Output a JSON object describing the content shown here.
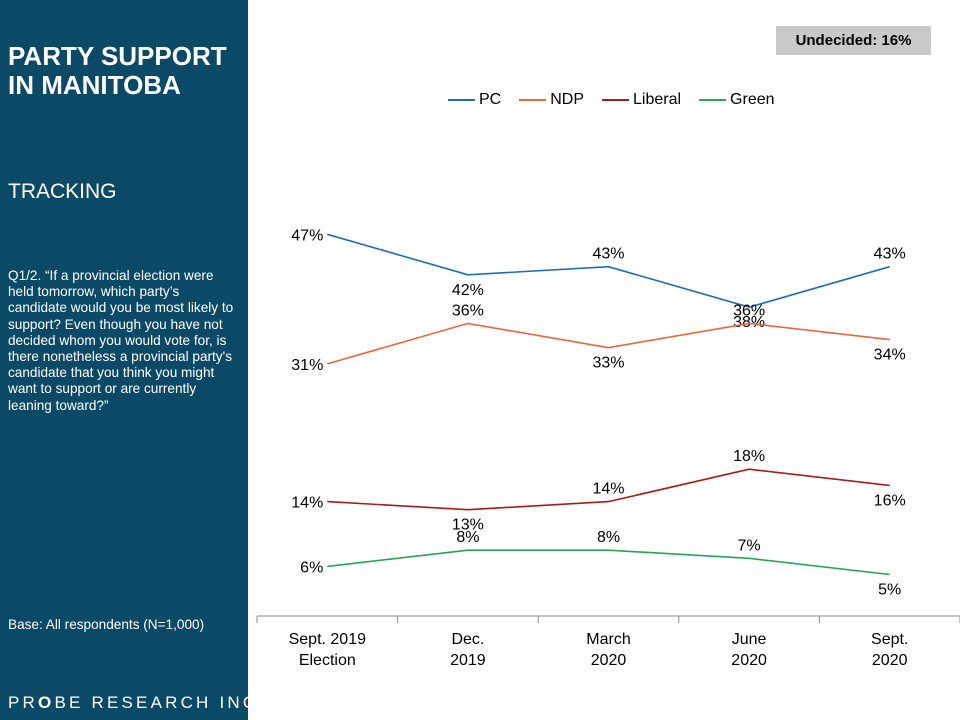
{
  "sidebar": {
    "title_line1": "PARTY SUPPORT",
    "title_line2": "IN MANITOBA",
    "subtitle": "TRACKING",
    "question": "Q1/2. “If a provincial election were held tomorrow, which party’s candidate would you be most likely to support? Even though you have not decided whom you would vote for, is there nonetheless a provincial party's candidate that you think you might want to support or are currently leaning toward?”",
    "base": "Base: All respondents (N=1,000)",
    "logo_pre": "PR",
    "logo_o": "O",
    "logo_be": "BE",
    "logo_rest": " RESEARCH INC."
  },
  "undecided": "Undecided: 16%",
  "chart_data": {
    "type": "line",
    "categories": [
      [
        "Sept. 2019",
        "Election"
      ],
      [
        "Dec.",
        "2019"
      ],
      [
        "March",
        "2020"
      ],
      [
        "June",
        "2020"
      ],
      [
        "Sept.",
        "2020"
      ]
    ],
    "series": [
      {
        "name": "PC",
        "color": "#1f6db5",
        "values": [
          47,
          42,
          43,
          38,
          43
        ],
        "labels": [
          "47%",
          "42%",
          "43%",
          "38%",
          "43%"
        ]
      },
      {
        "name": "NDP",
        "color": "#e8673f",
        "values": [
          31,
          36,
          33,
          36,
          34
        ],
        "labels": [
          "31%",
          "36%",
          "33%",
          "36%",
          "34%"
        ]
      },
      {
        "name": "Liberal",
        "color": "#a81c1c",
        "values": [
          14,
          13,
          14,
          18,
          16
        ],
        "labels": [
          "14%",
          "13%",
          "14%",
          "18%",
          "16%"
        ]
      },
      {
        "name": "Green",
        "color": "#26a655",
        "values": [
          6,
          8,
          8,
          7,
          5
        ],
        "labels": [
          "6%",
          "8%",
          "8%",
          "7%",
          "5%"
        ]
      }
    ],
    "legend_position": "top",
    "grid": false
  }
}
